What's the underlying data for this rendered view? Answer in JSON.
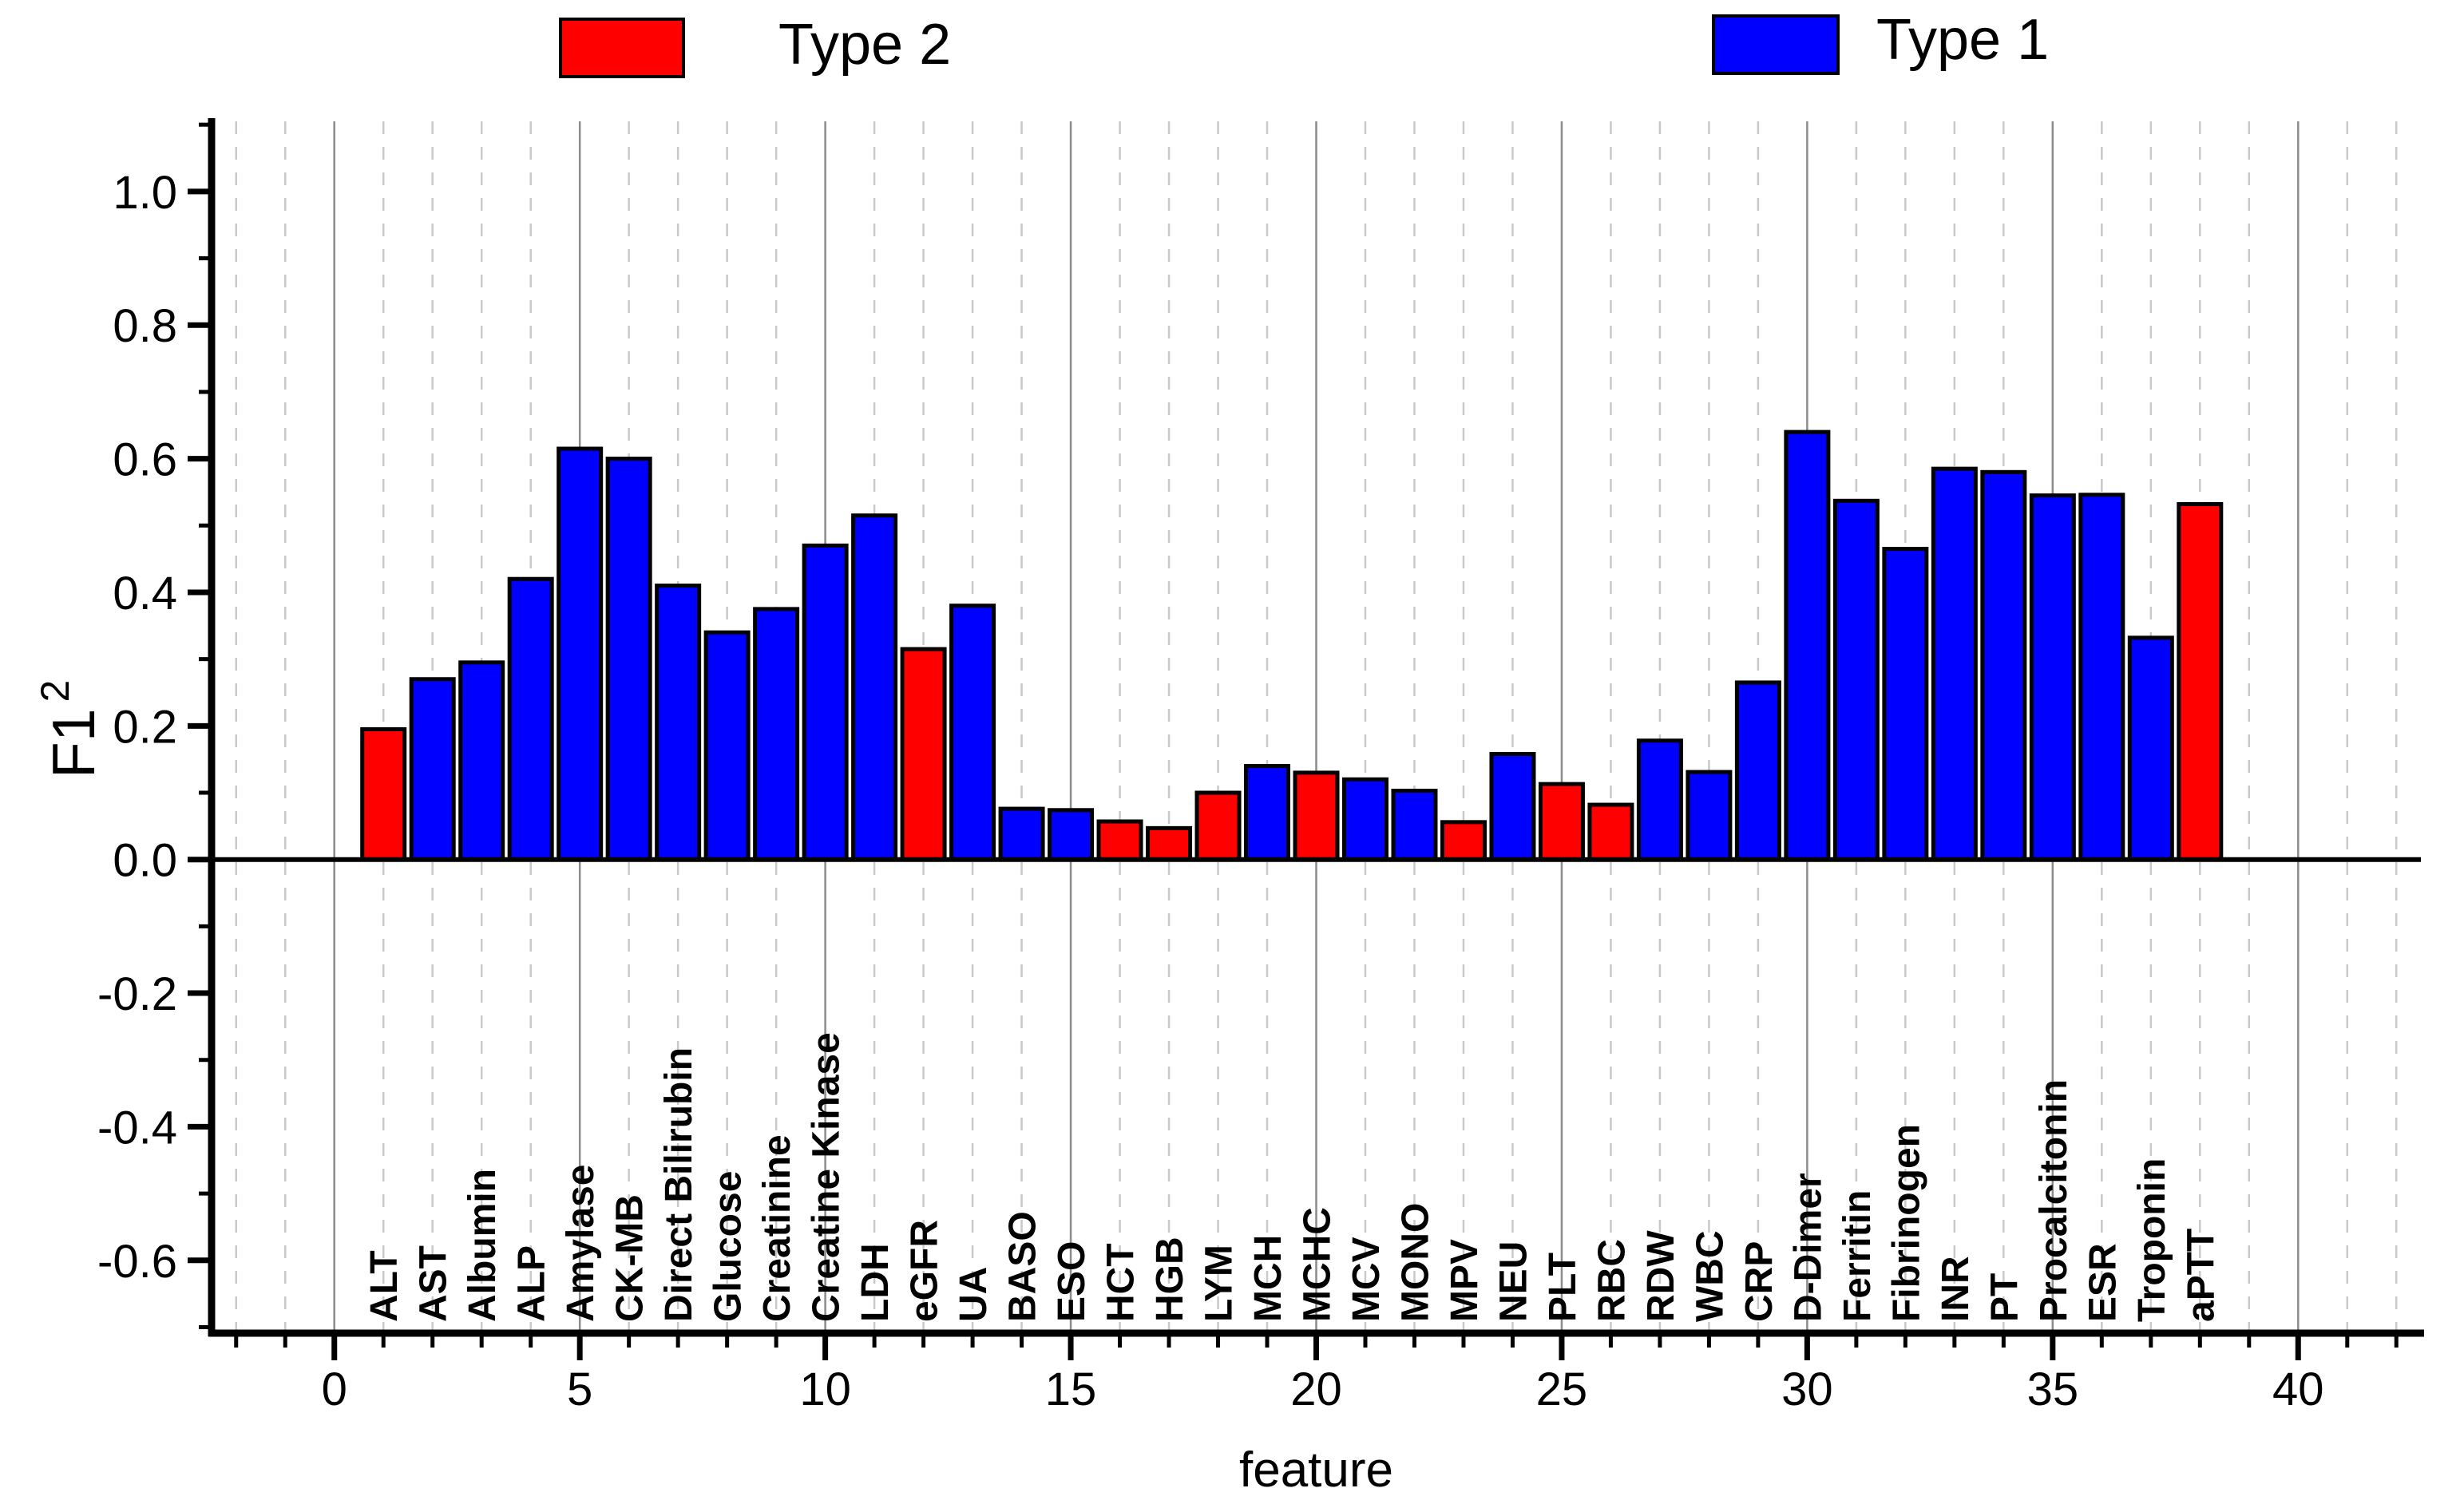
{
  "chart_data": {
    "type": "bar",
    "title": "",
    "xlabel": "feature",
    "ylabel_base": "F1",
    "ylabel_exponent": "2",
    "legend_position": "top",
    "legend": [
      {
        "label": "Type 2",
        "color": "#ff0000"
      },
      {
        "label": "Type 1",
        "color": "#0000ff"
      }
    ],
    "type_colors": {
      "Type 1": "#0000ff",
      "Type 2": "#ff0000"
    },
    "bar_outline_color": "#000000",
    "grid": "vertical gridlines at every integer x, dashed light gray, solid gray at multiples of 5",
    "xlim": [
      -2.5,
      42.5
    ],
    "ylim": [
      -0.709,
      1.105
    ],
    "x_major_tick_step": 5,
    "x_minor_tick_step": 1,
    "y_major_tick_step": 0.2,
    "y_minor_tick_step": 0.1,
    "x_tick_labels": [
      "0",
      "5",
      "10",
      "15",
      "20",
      "25",
      "30",
      "35",
      "40"
    ],
    "x_tick_values": [
      0,
      5,
      10,
      15,
      20,
      25,
      30,
      35,
      40
    ],
    "y_tick_labels": [
      "-0.6",
      "-0.4",
      "-0.2",
      "0.0",
      "0.2",
      "0.4",
      "0.6",
      "0.8",
      "1.0"
    ],
    "y_tick_values": [
      -0.6,
      -0.4,
      -0.2,
      0.0,
      0.2,
      0.4,
      0.6,
      0.8,
      1.0
    ],
    "categories": [
      "ALT",
      "AST",
      "Albumin",
      "ALP",
      "Amylase",
      "CK-MB",
      "Direct Bilirubin",
      "Glucose",
      "Creatinine",
      "Creatine Kinase",
      "LDH",
      "eGFR",
      "UA",
      "BASO",
      "ESO",
      "HCT",
      "HGB",
      "LYM",
      "MCH",
      "MCHC",
      "MCV",
      "MONO",
      "MPV",
      "NEU",
      "PLT",
      "RBC",
      "RDW",
      "WBC",
      "CRP",
      "D-Dimer",
      "Ferritin",
      "Fibrinogen",
      "INR",
      "PT",
      "Procalcitonin",
      "ESR",
      "Troponin",
      "aPTT"
    ],
    "bars": [
      {
        "x": 1,
        "feature": "ALT",
        "value": 0.195,
        "type": "Type 2"
      },
      {
        "x": 2,
        "feature": "AST",
        "value": 0.27,
        "type": "Type 1"
      },
      {
        "x": 3,
        "feature": "Albumin",
        "value": 0.295,
        "type": "Type 1"
      },
      {
        "x": 4,
        "feature": "ALP",
        "value": 0.42,
        "type": "Type 1"
      },
      {
        "x": 5,
        "feature": "Amylase",
        "value": 0.615,
        "type": "Type 1"
      },
      {
        "x": 6,
        "feature": "CK-MB",
        "value": 0.6,
        "type": "Type 1"
      },
      {
        "x": 7,
        "feature": "Direct Bilirubin",
        "value": 0.41,
        "type": "Type 1"
      },
      {
        "x": 8,
        "feature": "Glucose",
        "value": 0.34,
        "type": "Type 1"
      },
      {
        "x": 9,
        "feature": "Creatinine",
        "value": 0.375,
        "type": "Type 1"
      },
      {
        "x": 10,
        "feature": "Creatine Kinase",
        "value": 0.47,
        "type": "Type 1"
      },
      {
        "x": 11,
        "feature": "LDH",
        "value": 0.515,
        "type": "Type 1"
      },
      {
        "x": 12,
        "feature": "eGFR",
        "value": 0.315,
        "type": "Type 2"
      },
      {
        "x": 13,
        "feature": "UA",
        "value": 0.38,
        "type": "Type 1"
      },
      {
        "x": 14,
        "feature": "BASO",
        "value": 0.076,
        "type": "Type 1"
      },
      {
        "x": 15,
        "feature": "ESO",
        "value": 0.074,
        "type": "Type 1"
      },
      {
        "x": 16,
        "feature": "HCT",
        "value": 0.057,
        "type": "Type 2"
      },
      {
        "x": 17,
        "feature": "HGB",
        "value": 0.047,
        "type": "Type 2"
      },
      {
        "x": 18,
        "feature": "LYM",
        "value": 0.1,
        "type": "Type 2"
      },
      {
        "x": 19,
        "feature": "MCH",
        "value": 0.14,
        "type": "Type 1"
      },
      {
        "x": 20,
        "feature": "MCHC",
        "value": 0.13,
        "type": "Type 2"
      },
      {
        "x": 21,
        "feature": "MCV",
        "value": 0.12,
        "type": "Type 1"
      },
      {
        "x": 22,
        "feature": "MONO",
        "value": 0.103,
        "type": "Type 1"
      },
      {
        "x": 23,
        "feature": "MPV",
        "value": 0.056,
        "type": "Type 2"
      },
      {
        "x": 24,
        "feature": "NEU",
        "value": 0.158,
        "type": "Type 1"
      },
      {
        "x": 25,
        "feature": "PLT",
        "value": 0.113,
        "type": "Type 2"
      },
      {
        "x": 26,
        "feature": "RBC",
        "value": 0.082,
        "type": "Type 2"
      },
      {
        "x": 27,
        "feature": "RDW",
        "value": 0.178,
        "type": "Type 1"
      },
      {
        "x": 28,
        "feature": "WBC",
        "value": 0.131,
        "type": "Type 1"
      },
      {
        "x": 29,
        "feature": "CRP",
        "value": 0.265,
        "type": "Type 1"
      },
      {
        "x": 30,
        "feature": "D-Dimer",
        "value": 0.64,
        "type": "Type 1"
      },
      {
        "x": 31,
        "feature": "Ferritin",
        "value": 0.537,
        "type": "Type 1"
      },
      {
        "x": 32,
        "feature": "Fibrinogen",
        "value": 0.465,
        "type": "Type 1"
      },
      {
        "x": 33,
        "feature": "INR",
        "value": 0.585,
        "type": "Type 1"
      },
      {
        "x": 34,
        "feature": "PT",
        "value": 0.58,
        "type": "Type 1"
      },
      {
        "x": 35,
        "feature": "Procalcitonin",
        "value": 0.545,
        "type": "Type 1"
      },
      {
        "x": 36,
        "feature": "ESR",
        "value": 0.546,
        "type": "Type 1"
      },
      {
        "x": 37,
        "feature": "Troponin",
        "value": 0.332,
        "type": "Type 1"
      },
      {
        "x": 38,
        "feature": "aPTT",
        "value": 0.532,
        "type": "Type 2"
      }
    ]
  }
}
